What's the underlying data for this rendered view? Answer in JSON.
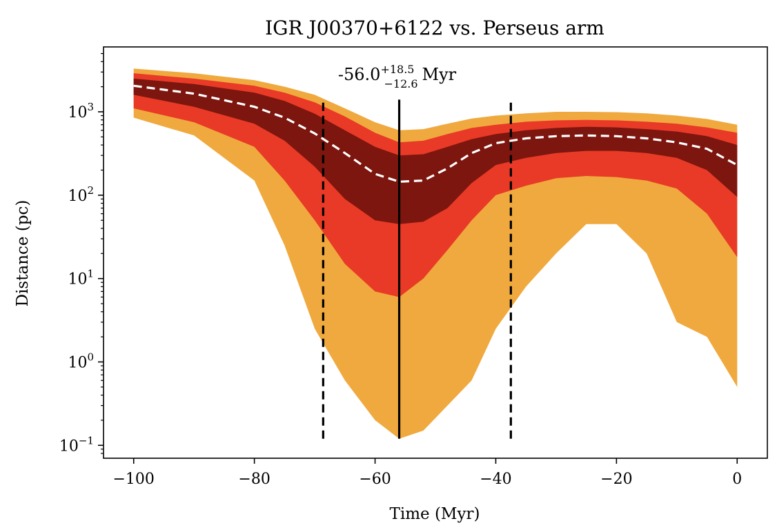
{
  "chart_data": {
    "type": "area",
    "title": "IGR J00370+6122 vs. Perseus arm",
    "xlabel": "Time (Myr)",
    "ylabel": "Distance (pc)",
    "xlim": [
      -105,
      5
    ],
    "ylim": [
      0.07,
      6000
    ],
    "yscale": "log",
    "xticks": [
      -100,
      -80,
      -60,
      -40,
      -20,
      0
    ],
    "xtick_labels": [
      "−100",
      "−80",
      "−60",
      "−40",
      "−20",
      "0"
    ],
    "yticks": [
      0.1,
      1,
      10,
      100,
      1000
    ],
    "ytick_labels": [
      {
        "base": "10",
        "exp": "−1"
      },
      {
        "base": "10",
        "exp": "0"
      },
      {
        "base": "10",
        "exp": "1"
      },
      {
        "base": "10",
        "exp": "2"
      },
      {
        "base": "10",
        "exp": "3"
      }
    ],
    "annotation": {
      "main": "-56.0",
      "sup": "+18.5",
      "sub": "−12.6",
      "unit": "Myr"
    },
    "vlines": [
      {
        "x": -56.0,
        "style": "solid",
        "ymin": 0.12,
        "ymax": 1400
      },
      {
        "x": -68.6,
        "style": "dashed",
        "ymin": 0.12,
        "ymax": 1400
      },
      {
        "x": -37.5,
        "style": "dashed",
        "ymin": 0.12,
        "ymax": 1400
      }
    ],
    "bands": {
      "x": [
        -100,
        -90,
        -80,
        -75,
        -70,
        -65,
        -60,
        -56,
        -52,
        -48,
        -44,
        -40,
        -35,
        -30,
        -25,
        -20,
        -15,
        -10,
        -5,
        0
      ],
      "outer_upper": [
        3300,
        2900,
        2400,
        2000,
        1600,
        1100,
        750,
        600,
        620,
        720,
        830,
        900,
        960,
        1000,
        1000,
        990,
        960,
        900,
        820,
        700
      ],
      "outer_lower": [
        850,
        520,
        150,
        25,
        2.5,
        0.6,
        0.2,
        0.12,
        0.15,
        0.3,
        0.6,
        2.5,
        8,
        20,
        45,
        45,
        20,
        3,
        2,
        0.5
      ],
      "mid_upper": [
        2900,
        2500,
        2050,
        1700,
        1300,
        880,
        560,
        430,
        450,
        540,
        640,
        700,
        760,
        790,
        800,
        790,
        760,
        720,
        650,
        560
      ],
      "mid_lower": [
        1100,
        750,
        380,
        150,
        50,
        15,
        7,
        6,
        10,
        22,
        50,
        100,
        130,
        160,
        170,
        165,
        150,
        120,
        60,
        18
      ],
      "inner_upper": [
        2500,
        2150,
        1700,
        1350,
        950,
        600,
        380,
        300,
        310,
        380,
        470,
        540,
        600,
        640,
        660,
        650,
        620,
        580,
        510,
        400
      ],
      "inner_lower": [
        1600,
        1150,
        720,
        450,
        220,
        90,
        50,
        45,
        48,
        70,
        140,
        230,
        280,
        320,
        340,
        340,
        320,
        280,
        200,
        95
      ],
      "median": [
        2050,
        1650,
        1150,
        850,
        550,
        320,
        180,
        145,
        150,
        210,
        320,
        420,
        480,
        510,
        520,
        510,
        480,
        430,
        360,
        230
      ]
    },
    "colors": {
      "outer": "#f0a93e",
      "mid": "#e83a26",
      "inner": "#7c160f",
      "median": "#ffffff",
      "vline": "#000000"
    }
  }
}
